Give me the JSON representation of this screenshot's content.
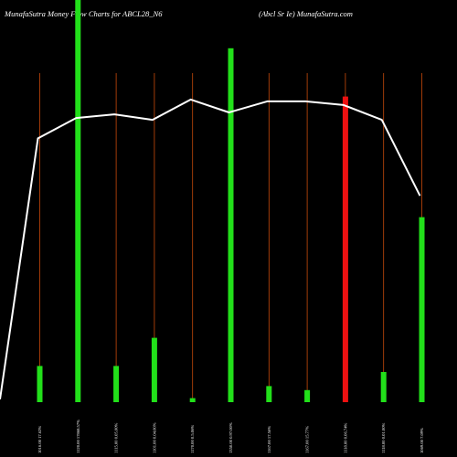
{
  "header": {
    "left_title": "MunafaSutra  Money Flow  Charts for ABCL28_N6",
    "right_title": "(Abcl Sr Ie) MunafaSutra.com"
  },
  "colors": {
    "background": "#000000",
    "up_bar": "#22e01a",
    "down_bar": "#ee1111",
    "guide_line": "#c84a0a",
    "price_line": "#ffffff",
    "text": "#ffffff"
  },
  "chart_data": {
    "type": "bar",
    "title": "MunafaSutra  Money Flow  Charts for ABCL28_N6",
    "categories": [
      "1016.00 17.62%",
      "1120.00 17868.57%",
      "1115.00 0.05.00%",
      "1101.00 0.04.00%",
      "1170.00 0.5.06%",
      "1350.00 0.97.00%",
      "1167.00 17.56%",
      "1167.00 15.77%",
      "1118.00 0.06.74%",
      "1118.00 0.01.00%",
      "1069.00 7.09%"
    ],
    "values": [
      9,
      100,
      9,
      16,
      1,
      88,
      4,
      3,
      76,
      7.5,
      46
    ],
    "directions": [
      "up",
      "up",
      "up",
      "up",
      "up",
      "up",
      "up",
      "up",
      "down",
      "up",
      "up"
    ],
    "ylim": [
      0,
      100
    ],
    "price_line": [
      2,
      72.5,
      78,
      79,
      77.5,
      83,
      79.5,
      82.5,
      82.5,
      81.5,
      77.5,
      57
    ],
    "price_line_ylim": [
      0,
      100
    ],
    "grid": false
  }
}
